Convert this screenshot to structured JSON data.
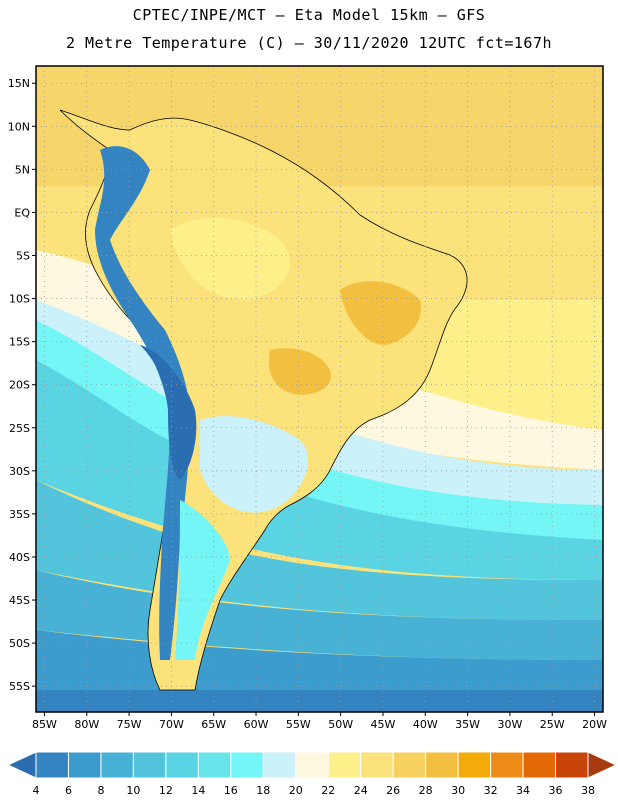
{
  "header": {
    "title_line1": "CPTEC/INPE/MCT –  Eta Model 15km – GFS",
    "title_line2": "2 Metre Temperature (C) – 30/11/2020 12UTC fct=167h"
  },
  "map": {
    "lon_range": [
      -86,
      -19
    ],
    "lat_range": [
      17,
      -58
    ],
    "lat_ticks": [
      {
        "v": 15,
        "label": "15N"
      },
      {
        "v": 10,
        "label": "10N"
      },
      {
        "v": 5,
        "label": "5N"
      },
      {
        "v": 0,
        "label": "EQ"
      },
      {
        "v": -5,
        "label": "5S"
      },
      {
        "v": -10,
        "label": "10S"
      },
      {
        "v": -15,
        "label": "15S"
      },
      {
        "v": -20,
        "label": "20S"
      },
      {
        "v": -25,
        "label": "25S"
      },
      {
        "v": -30,
        "label": "30S"
      },
      {
        "v": -35,
        "label": "35S"
      },
      {
        "v": -40,
        "label": "40S"
      },
      {
        "v": -45,
        "label": "45S"
      },
      {
        "v": -50,
        "label": "50S"
      },
      {
        "v": -55,
        "label": "55S"
      }
    ],
    "lon_ticks": [
      {
        "v": -85,
        "label": "85W"
      },
      {
        "v": -80,
        "label": "80W"
      },
      {
        "v": -75,
        "label": "75W"
      },
      {
        "v": -70,
        "label": "70W"
      },
      {
        "v": -65,
        "label": "65W"
      },
      {
        "v": -60,
        "label": "60W"
      },
      {
        "v": -55,
        "label": "55W"
      },
      {
        "v": -50,
        "label": "50W"
      },
      {
        "v": -45,
        "label": "45W"
      },
      {
        "v": -40,
        "label": "40W"
      },
      {
        "v": -35,
        "label": "35W"
      },
      {
        "v": -30,
        "label": "30W"
      },
      {
        "v": -25,
        "label": "25W"
      },
      {
        "v": -20,
        "label": "20W"
      }
    ],
    "gridlines": true
  },
  "colorbar": {
    "unit": "C",
    "labels": [
      "4",
      "6",
      "8",
      "10",
      "12",
      "14",
      "16",
      "18",
      "20",
      "22",
      "24",
      "26",
      "28",
      "30",
      "32",
      "34",
      "36",
      "38"
    ],
    "colors": [
      "#2a6db0",
      "#3384c0",
      "#3c9ccd",
      "#47b2d6",
      "#52c5dc",
      "#5ad4e2",
      "#66e4ea",
      "#74f6f6",
      "#cbf2fa",
      "#fff8e1",
      "#fdf08a",
      "#fce27a",
      "#f6d060",
      "#f2bf40",
      "#f2ab08",
      "#ec8c16",
      "#e36806",
      "#c8440a",
      "#a83a0f"
    ]
  }
}
